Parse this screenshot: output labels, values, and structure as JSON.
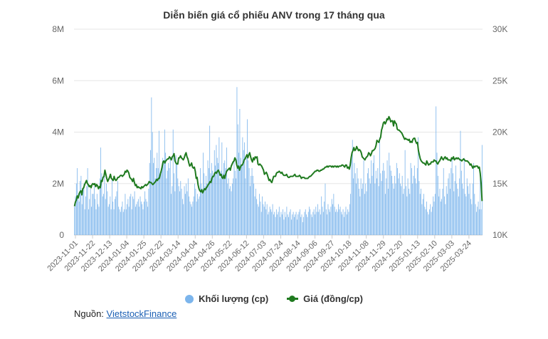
{
  "chart_data": {
    "type": "bar+line",
    "title": "Diễn biến giá cổ phiếu ANV trong 17 tháng qua",
    "left_axis": {
      "ticks": [
        "0",
        "2M",
        "4M",
        "6M",
        "8M"
      ],
      "ylim": [
        0,
        8000000
      ]
    },
    "right_axis": {
      "ticks": [
        "10K",
        "15K",
        "20K",
        "25K",
        "30K"
      ],
      "ylim": [
        10000,
        30000
      ]
    },
    "x_tick_labels": [
      "2023-11-01",
      "2023-11-22",
      "2023-12-13",
      "2024-01-04",
      "2024-01-25",
      "2024-02-22",
      "2024-03-14",
      "2024-04-04",
      "2024-04-26",
      "2024-05-22",
      "2024-06-12",
      "2024-07-03",
      "2024-07-24",
      "2024-08-14",
      "2024-09-06",
      "2024-09-27",
      "2024-10-18",
      "2024-11-08",
      "2024-11-29",
      "2024-12-20",
      "2025-01-13",
      "2025-02-10",
      "2025-03-03",
      "2025-03-24"
    ],
    "grid": true,
    "legend_position": "bottom",
    "series": [
      {
        "name": "Khối lượng (cp)",
        "type": "bar",
        "color": "#7cb5ec",
        "values": [
          1100000,
          1500000,
          2000000,
          2600000,
          1400000,
          1300000,
          2100000,
          2300000,
          1200000,
          1800000,
          2000000,
          1000000,
          1500000,
          1900000,
          2600000,
          1000000,
          1400000,
          1800000,
          1100000,
          1600000,
          1600000,
          1900000,
          1400000,
          1000000,
          1600000,
          1200000,
          1100000,
          2200000,
          3400000,
          2400000,
          1500000,
          1600000,
          2500000,
          1400000,
          2000000,
          1700000,
          1100000,
          1200000,
          1500000,
          1000000,
          2200000,
          1300000,
          1000000,
          1400000,
          1500000,
          1700000,
          2100000,
          1100000,
          1000000,
          900000,
          1100000,
          1300000,
          900000,
          1000000,
          1600000,
          1000000,
          1200000,
          1400000,
          1100000,
          1500000,
          1600000,
          1000000,
          1500000,
          1400000,
          1700000,
          1100000,
          1200000,
          1300000,
          1400000,
          1100000,
          1500000,
          1300000,
          1200000,
          1000000,
          1300000,
          1700000,
          1400000,
          1300000,
          1100000,
          1800000,
          2800000,
          3300000,
          5350000,
          4000000,
          2800000,
          3000000,
          2200000,
          2600000,
          3200000,
          2600000,
          4050000,
          2300000,
          2400000,
          2600000,
          3000000,
          2800000,
          4100000,
          3200000,
          2200000,
          2500000,
          2800000,
          2600000,
          3000000,
          1600000,
          1900000,
          4100000,
          2400000,
          1700000,
          3100000,
          2800000,
          2200000,
          1900000,
          1700000,
          2100000,
          1800000,
          1400000,
          1200000,
          1900000,
          1600000,
          2000000,
          1700000,
          2200000,
          1500000,
          1300000,
          1200000,
          1100000,
          1300000,
          1500000,
          2000000,
          1800000,
          1300000,
          1600000,
          1400000,
          1500000,
          2600000,
          2000000,
          1800000,
          3200000,
          2400000,
          1900000,
          2300000,
          2000000,
          2900000,
          2600000,
          4250000,
          2400000,
          2800000,
          2500000,
          2300000,
          3300000,
          2700000,
          3500000,
          3000000,
          2800000,
          3800000,
          2200000,
          2500000,
          3600000,
          2400000,
          2800000,
          2900000,
          2600000,
          3400000,
          2000000,
          2200000,
          1800000,
          1900000,
          1700000,
          2000000,
          2200000,
          3000000,
          2500000,
          2200000,
          5750000,
          4300000,
          3200000,
          4900000,
          3000000,
          2700000,
          3800000,
          3300000,
          3600000,
          2200000,
          3000000,
          4500000,
          2900000,
          2600000,
          1900000,
          2300000,
          2600000,
          2300000,
          2000000,
          1500000,
          1800000,
          1400000,
          1200000,
          1100000,
          1600000,
          1300000,
          900000,
          1500000,
          1200000,
          1100000,
          1300000,
          1000000,
          1200000,
          800000,
          900000,
          1100000,
          1000000,
          900000,
          1200000,
          800000,
          900000,
          700000,
          1000000,
          800000,
          900000,
          1100000,
          700000,
          900000,
          800000,
          1000000,
          600000,
          900000,
          700000,
          1100000,
          800000,
          700000,
          900000,
          1000000,
          600000,
          800000,
          900000,
          700000,
          800000,
          900000,
          600000,
          800000,
          900000,
          1000000,
          700000,
          800000,
          500000,
          700000,
          900000,
          1000000,
          800000,
          700000,
          900000,
          1100000,
          1000000,
          800000,
          700000,
          900000,
          1000000,
          800000,
          1100000,
          900000,
          1200000,
          900000,
          1000000,
          800000,
          1500000,
          1100000,
          900000,
          1300000,
          2000000,
          1000000,
          800000,
          1200000,
          1000000,
          900000,
          1100000,
          1400000,
          1200000,
          1600000,
          1100000,
          900000,
          1000000,
          900000,
          1200000,
          1000000,
          1100000,
          900000,
          800000,
          1000000,
          700000,
          900000,
          1100000,
          800000,
          1000000,
          900000,
          1200000,
          1600000,
          3200000,
          3700000,
          2200000,
          2800000,
          2400000,
          2000000,
          2600000,
          2200000,
          1800000,
          1500000,
          2200000,
          1800000,
          2000000,
          2900000,
          1600000,
          2000000,
          1700000,
          2400000,
          2600000,
          2200000,
          2000000,
          2900000,
          2300000,
          2800000,
          3100000,
          2000000,
          2500000,
          2200000,
          2600000,
          1900000,
          3800000,
          2400000,
          2100000,
          2500000,
          2800000,
          2500000,
          1600000,
          2200000,
          2900000,
          1800000,
          3200000,
          2700000,
          2500000,
          2300000,
          2000000,
          1800000,
          2300000,
          2000000,
          2800000,
          2600000,
          2200000,
          2400000,
          2000000,
          1900000,
          2300000,
          1600000,
          1800000,
          3300000,
          1900000,
          1500000,
          2200000,
          1800000,
          1600000,
          2800000,
          2600000,
          2000000,
          2300000,
          2700000,
          2200000,
          2000000,
          2600000,
          3800000,
          2100000,
          1600000,
          1800000,
          1200000,
          1400000,
          1600000,
          1100000,
          1000000,
          1300000,
          900000,
          800000,
          1000000,
          1200000,
          900000,
          1100000,
          1500000,
          1300000,
          1600000,
          5000000,
          3200000,
          2300000,
          1500000,
          1800000,
          1300000,
          1400000,
          1800000,
          2600000,
          1500000,
          1200000,
          1900000,
          1600000,
          2200000,
          2400000,
          1800000,
          2600000,
          3000000,
          2400000,
          1700000,
          2100000,
          2700000,
          2000000,
          1800000,
          1500000,
          2200000,
          4050000,
          2500000,
          2000000,
          1800000,
          3000000,
          1600000,
          1500000,
          2200000,
          1900000,
          1600000,
          2000000,
          1400000,
          1200000,
          2000000,
          2800000,
          1600000,
          1200000,
          900000,
          1100000,
          1300000,
          1000000,
          2200000,
          1000000,
          3500000
        ]
      },
      {
        "name": "Giá (đồng/cp)",
        "type": "line",
        "color": "#1f7a1f",
        "values": [
          12800,
          13200,
          13400,
          13800,
          13600,
          14000,
          14200,
          14300,
          13900,
          14500,
          14600,
          14900,
          15100,
          15300,
          15000,
          14900,
          14700,
          14800,
          14600,
          14900,
          15000,
          14900,
          15000,
          14700,
          14900,
          14800,
          14500,
          14700,
          14600,
          15300,
          15200,
          15600,
          15700,
          16300,
          15900,
          15500,
          15200,
          15400,
          15600,
          15900,
          15500,
          15400,
          15300,
          15700,
          15400,
          15300,
          15400,
          15600,
          15600,
          15700,
          15800,
          15800,
          15700,
          15800,
          15900,
          16200,
          16100,
          16300,
          16200,
          16000,
          15600,
          15500,
          15400,
          15200,
          15500,
          15100,
          14800,
          14900,
          14600,
          14700,
          14600,
          14600,
          14500,
          14700,
          14600,
          14700,
          14800,
          14900,
          14800,
          14900,
          15000,
          15200,
          15100,
          15100,
          15000,
          14900,
          15000,
          15100,
          15200,
          15400,
          15300,
          15500,
          15500,
          15900,
          16200,
          16600,
          17100,
          17200,
          17000,
          17200,
          17300,
          17400,
          17400,
          17600,
          17500,
          17300,
          17600,
          17700,
          17900,
          17200,
          17000,
          16900,
          16900,
          17500,
          17500,
          17700,
          17500,
          17400,
          17300,
          17500,
          17800,
          18000,
          17600,
          17400,
          17000,
          16700,
          16800,
          17000,
          16600,
          16500,
          16600,
          16200,
          15500,
          15600,
          14900,
          14500,
          14300,
          14200,
          14400,
          14100,
          14300,
          14500,
          14400,
          14600,
          14700,
          14900,
          15000,
          15200,
          15100,
          15500,
          15700,
          15700,
          16000,
          16100,
          16000,
          16200,
          16300,
          16100,
          15800,
          15900,
          15600,
          15500,
          15800,
          15500,
          15900,
          16200,
          16300,
          16400,
          16500,
          16300,
          16700,
          16900,
          17100,
          17200,
          17500,
          17300,
          16800,
          16500,
          16700,
          16300,
          16600,
          16800,
          16800,
          17000,
          17300,
          17400,
          17600,
          17800,
          17500,
          17800,
          18000,
          17600,
          17300,
          17100,
          17500,
          17300,
          17600,
          17500,
          17600,
          16900,
          16800,
          16900,
          16800,
          16700,
          16500,
          16300,
          15900,
          16000,
          16100,
          15900,
          15600,
          15300,
          15400,
          15200,
          15100,
          15400,
          15700,
          15700,
          15700,
          16000,
          16100,
          16100,
          16200,
          16100,
          16000,
          16100,
          15900,
          15800,
          15800,
          15800,
          15900,
          15700,
          15600,
          15600,
          15700,
          15700,
          15700,
          15700,
          15800,
          15900,
          15700,
          15700,
          15700,
          15700,
          15800,
          15700,
          15500,
          15600,
          15600,
          15600,
          15500,
          15500,
          15500,
          15500,
          15600,
          15700,
          15700,
          15800,
          15900,
          16000,
          16100,
          16200,
          16200,
          16300,
          16300,
          16200,
          16200,
          16300,
          16300,
          16400,
          16400,
          16500,
          16600,
          16600,
          16700,
          16600,
          16700,
          16700,
          16700,
          16600,
          16700,
          16600,
          16700,
          16700,
          16600,
          16700,
          16600,
          16700,
          16700,
          16700,
          16800,
          16800,
          16700,
          16600,
          16800,
          16800,
          16500,
          16600,
          16400,
          16800,
          17500,
          18000,
          18200,
          18500,
          18200,
          18300,
          18600,
          18400,
          18200,
          18300,
          18200,
          18000,
          17600,
          17500,
          17400,
          17300,
          17500,
          17600,
          17700,
          18000,
          17900,
          17700,
          17900,
          18200,
          18200,
          18300,
          18400,
          18700,
          19200,
          19100,
          19000,
          19300,
          19500,
          20200,
          20500,
          20900,
          21000,
          20800,
          21000,
          21300,
          21200,
          21500,
          21300,
          21000,
          21100,
          21100,
          20600,
          21100,
          20900,
          20800,
          20300,
          20200,
          20200,
          20100,
          20000,
          19900,
          19700,
          19500,
          19300,
          19400,
          19300,
          19300,
          19200,
          19300,
          19000,
          19100,
          19000,
          19300,
          19400,
          19400,
          19100,
          18900,
          19000,
          18200,
          17800,
          17400,
          17200,
          17100,
          17000,
          17000,
          16900,
          16800,
          17200,
          17000,
          16800,
          16900,
          16900,
          17100,
          17100,
          17100,
          17300,
          17200,
          17200,
          17000,
          16900,
          17100,
          17200,
          17400,
          17600,
          17400,
          17300,
          17500,
          17600,
          17400,
          17500,
          17300,
          17300,
          17300,
          17200,
          17500,
          17400,
          17600,
          17300,
          17400,
          17500,
          17400,
          17500,
          17400,
          17300,
          17300,
          17200,
          17300,
          17400,
          17300,
          17200,
          17200,
          17200,
          17100,
          17000,
          16800,
          16900,
          16700,
          16500,
          16700,
          16600,
          16700,
          16700,
          16700,
          16500,
          16600,
          16000,
          15000,
          13300
        ]
      }
    ]
  },
  "legend": {
    "volume_label": "Khối lượng (cp)",
    "price_label": "Giá (đồng/cp)"
  },
  "source": {
    "prefix": "Nguồn: ",
    "link_text": "VietstockFinance"
  }
}
